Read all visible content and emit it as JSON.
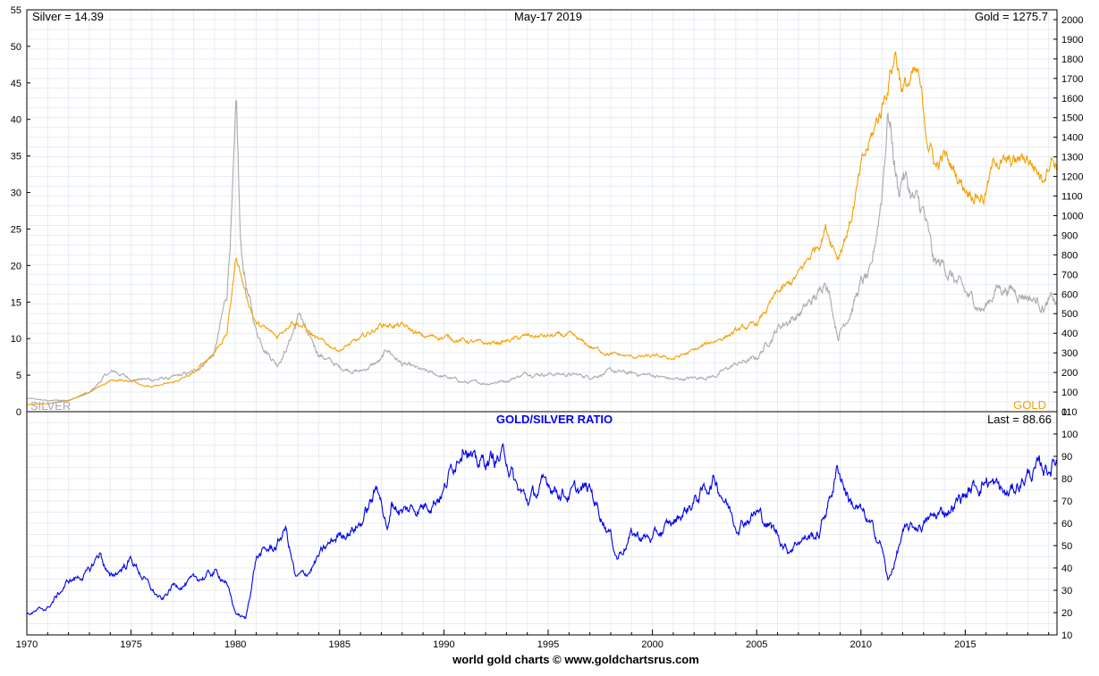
{
  "header": {
    "silver_text": "Silver = 14.39",
    "date_text": "May-17  2019",
    "gold_text": "Gold = 1275.7",
    "ratio_title": "GOLD/SILVER RATIO",
    "last_text": "Last = 88.66",
    "credit": "world gold charts © www.goldchartsrus.com",
    "legend_silver": "SILVER",
    "legend_gold": "GOLD"
  },
  "colors": {
    "gold": "#f5a000",
    "silver": "#aaaaaa",
    "ratio": "#0000ee",
    "grid": "#e6ecf4",
    "axis": "#000000",
    "background": "#ffffff"
  },
  "chart_data": [
    {
      "type": "line",
      "title": "May-17  2019",
      "x_range": [
        1970,
        2019.4
      ],
      "y_left": {
        "label": "",
        "ylim": [
          0,
          55
        ],
        "ticks": [
          0,
          5,
          10,
          15,
          20,
          25,
          30,
          35,
          40,
          45,
          50,
          55
        ]
      },
      "y_right": {
        "label": "",
        "ylim": [
          0,
          2050
        ],
        "ticks": [
          0,
          100,
          200,
          300,
          400,
          500,
          600,
          700,
          800,
          900,
          1000,
          1100,
          1200,
          1300,
          1400,
          1500,
          1600,
          1700,
          1800,
          1900,
          2000
        ]
      },
      "x_ticks": [
        1970,
        1975,
        1980,
        1985,
        1990,
        1995,
        2000,
        2005,
        2010,
        2015
      ],
      "grid": true,
      "series": [
        {
          "name": "SILVER",
          "axis": "left",
          "x": [
            1970,
            1971,
            1972,
            1973,
            1973.8,
            1974.2,
            1975,
            1976,
            1977,
            1978,
            1979,
            1979.6,
            1980.05,
            1980.25,
            1980.6,
            1981,
            1981.5,
            1982,
            1982.5,
            1983.1,
            1983.5,
            1984,
            1985,
            1985.5,
            1986,
            1987,
            1987.3,
            1988,
            1989,
            1990,
            1991,
            1992,
            1993,
            1994,
            1995,
            1996,
            1997,
            1998,
            1999,
            2000,
            2001,
            2002,
            2003,
            2004,
            2005,
            2006,
            2006.5,
            2007,
            2008,
            2008.3,
            2008.9,
            2009.5,
            2010,
            2010.5,
            2011,
            2011.3,
            2011.5,
            2011.8,
            2012,
            2012.5,
            2013,
            2013.5,
            2014,
            2015,
            2015.9,
            2016.5,
            2017,
            2018,
            2018.8,
            2019.2,
            2019.38
          ],
          "values": [
            1.8,
            1.5,
            1.6,
            2.5,
            5.0,
            5.5,
            4.5,
            4.4,
            4.6,
            5.4,
            8.0,
            16.0,
            40.0,
            22.0,
            16.0,
            11.0,
            8.5,
            6.5,
            9.0,
            13.5,
            10.0,
            8.0,
            6.0,
            5.8,
            5.5,
            7.0,
            8.5,
            6.5,
            5.5,
            4.8,
            4.0,
            3.9,
            4.3,
            5.3,
            5.2,
            5.1,
            4.8,
            5.5,
            5.2,
            5.0,
            4.4,
            4.6,
            4.9,
            6.5,
            7.3,
            11.5,
            12.5,
            13.3,
            16.0,
            19.0,
            10.5,
            14.0,
            17.5,
            18.5,
            30.0,
            42.0,
            37.0,
            30.0,
            33.0,
            29.0,
            27.0,
            20.0,
            20.0,
            16.0,
            14.0,
            17.0,
            17.0,
            16.0,
            14.5,
            15.3,
            14.39
          ]
        },
        {
          "name": "GOLD",
          "axis": "right",
          "x": [
            1970,
            1971,
            1972,
            1973,
            1974,
            1975,
            1976,
            1977,
            1978,
            1979,
            1979.6,
            1980.05,
            1980.5,
            1981,
            1982,
            1982.7,
            1983.1,
            1984,
            1985,
            1986,
            1987,
            1988,
            1989,
            1990,
            1991,
            1992,
            1993,
            1994,
            1995,
            1996,
            1997,
            1998,
            1999,
            2000,
            2001,
            2002,
            2003,
            2004,
            2005,
            2006,
            2006.5,
            2007,
            2008,
            2008.3,
            2008.9,
            2009.5,
            2010,
            2011,
            2011.65,
            2012,
            2012.7,
            2013.2,
            2013.6,
            2014,
            2015,
            2015.9,
            2016.5,
            2017,
            2018,
            2018.7,
            2019.1,
            2019.38
          ],
          "values": [
            36,
            41,
            59,
            98,
            159,
            160,
            125,
            148,
            194,
            307,
            400,
            800,
            600,
            450,
            380,
            470,
            450,
            360,
            317,
            368,
            446,
            437,
            381,
            383,
            362,
            344,
            360,
            384,
            384,
            388,
            331,
            294,
            279,
            280,
            271,
            310,
            363,
            409,
            444,
            603,
            640,
            695,
            870,
            950,
            800,
            975,
            1225,
            1550,
            1850,
            1650,
            1700,
            1400,
            1250,
            1300,
            1150,
            1100,
            1300,
            1250,
            1300,
            1200,
            1320,
            1275.7
          ]
        }
      ]
    },
    {
      "type": "line",
      "title": "GOLD/SILVER RATIO",
      "x_range": [
        1970,
        2019.4
      ],
      "y_right": {
        "label": "",
        "ylim": [
          10,
          110
        ],
        "ticks": [
          10,
          20,
          30,
          40,
          50,
          60,
          70,
          80,
          90,
          100,
          110
        ]
      },
      "x_ticks": [
        1970,
        1975,
        1980,
        1985,
        1990,
        1995,
        2000,
        2005,
        2010,
        2015
      ],
      "grid": true,
      "series": [
        {
          "name": "GOLD/SILVER RATIO",
          "axis": "right",
          "x": [
            1970,
            1971,
            1972,
            1973,
            1973.5,
            1974,
            1975,
            1976,
            1976.5,
            1977,
            1978,
            1979,
            1979.5,
            1980,
            1980.5,
            1981,
            1982,
            1982.4,
            1982.9,
            1983.5,
            1984,
            1985,
            1986,
            1986.9,
            1987.3,
            1987.5,
            1988,
            1989,
            1990,
            1991,
            1991.5,
            1992,
            1993,
            1993.5,
            1994,
            1995,
            1996,
            1997,
            1998,
            1998.3,
            1999,
            2000,
            2001,
            2002,
            2003,
            2003.4,
            2004,
            2005,
            2006,
            2006.5,
            2007,
            2008,
            2008.9,
            2009.5,
            2010,
            2011,
            2011.3,
            2012,
            2013,
            2014,
            2015,
            2016,
            2017,
            2018,
            2019,
            2019.38
          ],
          "values": [
            19,
            22,
            34,
            38,
            47,
            35,
            44,
            30,
            25,
            32,
            34,
            38,
            35,
            20,
            17,
            45,
            50,
            58,
            35,
            38,
            45,
            55,
            60,
            77,
            55,
            70,
            65,
            68,
            75,
            100,
            85,
            88,
            90,
            75,
            70,
            78,
            73,
            75,
            55,
            45,
            55,
            53,
            60,
            70,
            80,
            73,
            60,
            65,
            55,
            48,
            53,
            55,
            85,
            70,
            65,
            50,
            33,
            55,
            60,
            65,
            73,
            80,
            72,
            82,
            85,
            88.66
          ]
        }
      ]
    }
  ]
}
